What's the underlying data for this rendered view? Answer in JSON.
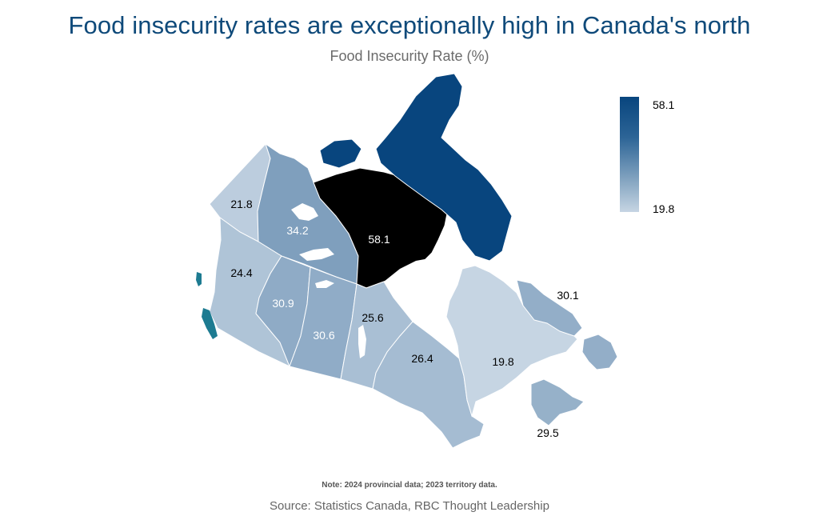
{
  "header": {
    "title": "Food insecurity rates are exceptionally high in Canada's north",
    "subtitle": "Food Insecurity Rate (%)"
  },
  "legend": {
    "max_label": "58.1",
    "min_label": "19.8"
  },
  "footer": {
    "note": "Note: 2024 provincial data; 2023 territory data.",
    "source": "Source: Statistics Canada, RBC Thought Leadership"
  },
  "chart_data": {
    "type": "choropleth",
    "value_range": [
      19.8,
      58.1
    ],
    "color_low": "#c6d5e3",
    "color_high": "#08457e",
    "regions": [
      {
        "region": "Yukon",
        "label": "21.8",
        "value": 21.8
      },
      {
        "region": "Northwest Territories",
        "label": "34.2",
        "value": 34.2
      },
      {
        "region": "Nunavut",
        "label": "58.1",
        "value": 58.1
      },
      {
        "region": "British Columbia",
        "label": "24.4",
        "value": 24.4
      },
      {
        "region": "Alberta",
        "label": "30.9",
        "value": 30.9
      },
      {
        "region": "Saskatchewan",
        "label": "30.6",
        "value": 30.6
      },
      {
        "region": "Manitoba",
        "label": "25.6",
        "value": 25.6
      },
      {
        "region": "Ontario",
        "label": "26.4",
        "value": 26.4
      },
      {
        "region": "Quebec",
        "label": "19.8",
        "value": 19.8
      },
      {
        "region": "Newfoundland and Labrador",
        "label": "30.1",
        "value": 30.1
      },
      {
        "region": "Maritimes",
        "label": "29.5",
        "value": 29.5
      }
    ]
  }
}
